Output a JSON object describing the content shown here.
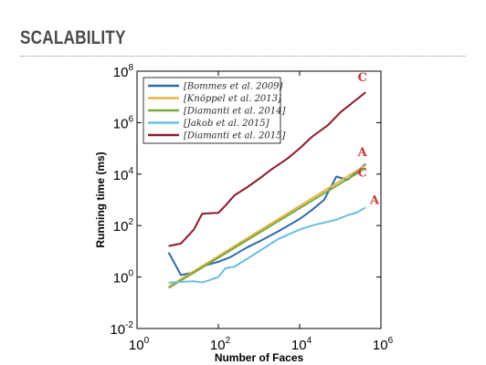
{
  "slide": {
    "title": "SCALABILITY"
  },
  "colors": {
    "bommes": "#2e6aa8",
    "knoppel": "#e8b24a",
    "diamanti2014": "#7aa83a",
    "jakob": "#6cbde3",
    "diamanti2015": "#8b1a2b",
    "annotation": "#c93a3a"
  },
  "chart_data": {
    "type": "line",
    "xscale": "log",
    "yscale": "log",
    "xlabel": "Number of Faces",
    "ylabel": "Running time (ms)",
    "xlim": [
      1,
      1000000
    ],
    "ylim": [
      0.01,
      100000000
    ],
    "xticks": [
      {
        "base": "10",
        "exp": "0"
      },
      {
        "base": "10",
        "exp": "2"
      },
      {
        "base": "10",
        "exp": "4"
      },
      {
        "base": "10",
        "exp": "6"
      }
    ],
    "yticks": [
      {
        "base": "10",
        "exp": "-2"
      },
      {
        "base": "10",
        "exp": "0"
      },
      {
        "base": "10",
        "exp": "2"
      },
      {
        "base": "10",
        "exp": "4"
      },
      {
        "base": "10",
        "exp": "6"
      },
      {
        "base": "10",
        "exp": "8"
      }
    ],
    "grid": false,
    "legend": "top-left",
    "series": [
      {
        "name": "[Bommes et al. 2009]",
        "colorKey": "bommes",
        "x": [
          6,
          12,
          25,
          50,
          100,
          200,
          500,
          1000,
          3000,
          10000,
          20000,
          40000,
          80000,
          150000,
          250000,
          420000
        ],
        "y": [
          9,
          1.2,
          1.5,
          2.9,
          3.9,
          6,
          14,
          24,
          60,
          180,
          400,
          1000,
          8000,
          6000,
          12000,
          25000
        ]
      },
      {
        "name": "[Knöppel et al. 2013]",
        "colorKey": "knoppel",
        "x": [
          6,
          420000
        ],
        "y": [
          0.42,
          22000
        ]
      },
      {
        "name": "[Diamanti et al. 2014]",
        "colorKey": "diamanti2014",
        "x": [
          6,
          420000
        ],
        "y": [
          0.38,
          17000
        ]
      },
      {
        "name": "[Jakob et al. 2015]",
        "colorKey": "jakob",
        "x": [
          6,
          12,
          25,
          40,
          60,
          100,
          150,
          250,
          500,
          1000,
          3000,
          10000,
          20000,
          40000,
          80000,
          150000,
          250000,
          420000
        ],
        "y": [
          0.6,
          0.65,
          0.68,
          0.62,
          0.75,
          1.0,
          2.2,
          2.5,
          5,
          10,
          30,
          70,
          100,
          130,
          170,
          250,
          320,
          500
        ]
      },
      {
        "name": "[Diamanti et al. 2015]",
        "colorKey": "diamanti2015",
        "x": [
          6,
          12,
          25,
          40,
          60,
          100,
          150,
          250,
          500,
          1000,
          2000,
          5000,
          10000,
          20000,
          50000,
          100000,
          200000,
          420000
        ],
        "y": [
          16,
          20,
          70,
          290,
          300,
          310,
          600,
          1500,
          3000,
          6500,
          15000,
          40000,
          100000,
          280000,
          800000,
          2500000,
          6000000,
          15000000
        ]
      }
    ],
    "annotations": [
      {
        "text": "C",
        "x": 350000,
        "y": 40000000
      },
      {
        "text": "A",
        "x": 350000,
        "y": 50000
      },
      {
        "text": "C",
        "x": 350000,
        "y": 8000
      },
      {
        "text": "A",
        "x": 700000,
        "y": 700
      }
    ]
  }
}
